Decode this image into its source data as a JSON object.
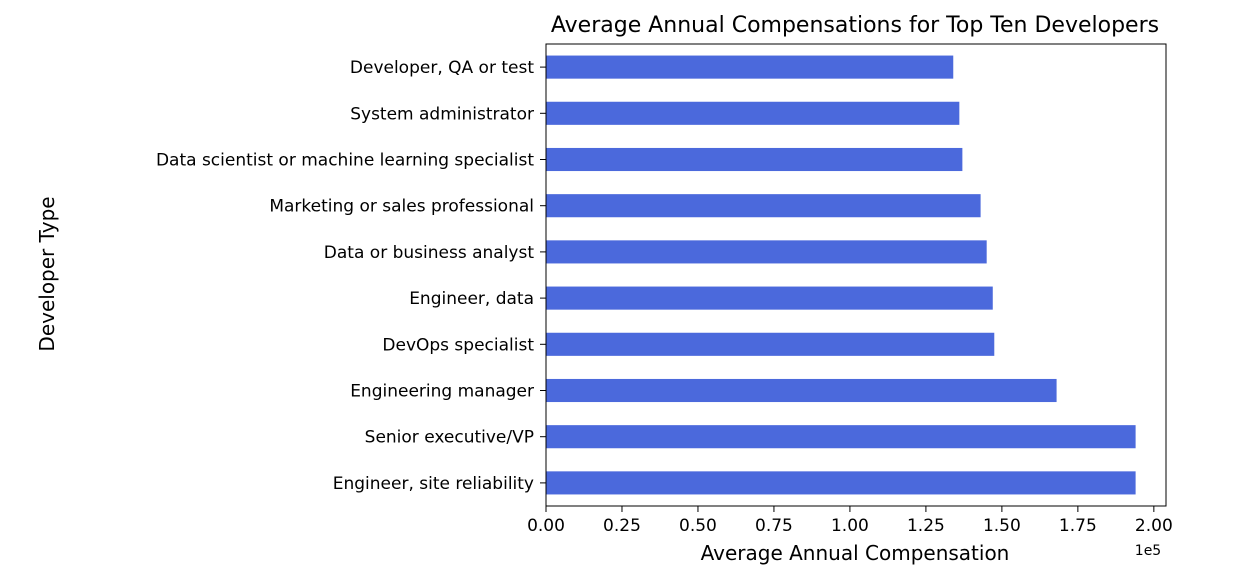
{
  "chart_data": {
    "type": "bar",
    "orientation": "horizontal",
    "title": "Average Annual Compensations for Top Ten Developers",
    "xlabel": "Average Annual Compensation",
    "ylabel": "Developer Type",
    "x_offset_label": "1e5",
    "xlim": [
      0,
      2.04
    ],
    "xticks": [
      "0.00",
      "0.25",
      "0.50",
      "0.75",
      "1.00",
      "1.25",
      "1.50",
      "1.75",
      "2.00"
    ],
    "categories": [
      "Developer, QA or test",
      "System administrator",
      "Data scientist or machine learning specialist",
      "Marketing or sales professional",
      "Data or business analyst",
      "Engineer, data",
      "DevOps specialist",
      "Engineering manager",
      "Senior executive/VP",
      "Engineer, site reliability"
    ],
    "values": [
      1.34,
      1.36,
      1.37,
      1.43,
      1.45,
      1.47,
      1.475,
      1.68,
      1.94,
      1.94
    ],
    "bar_color": "#4b69dc",
    "grid": false,
    "legend": "none"
  }
}
